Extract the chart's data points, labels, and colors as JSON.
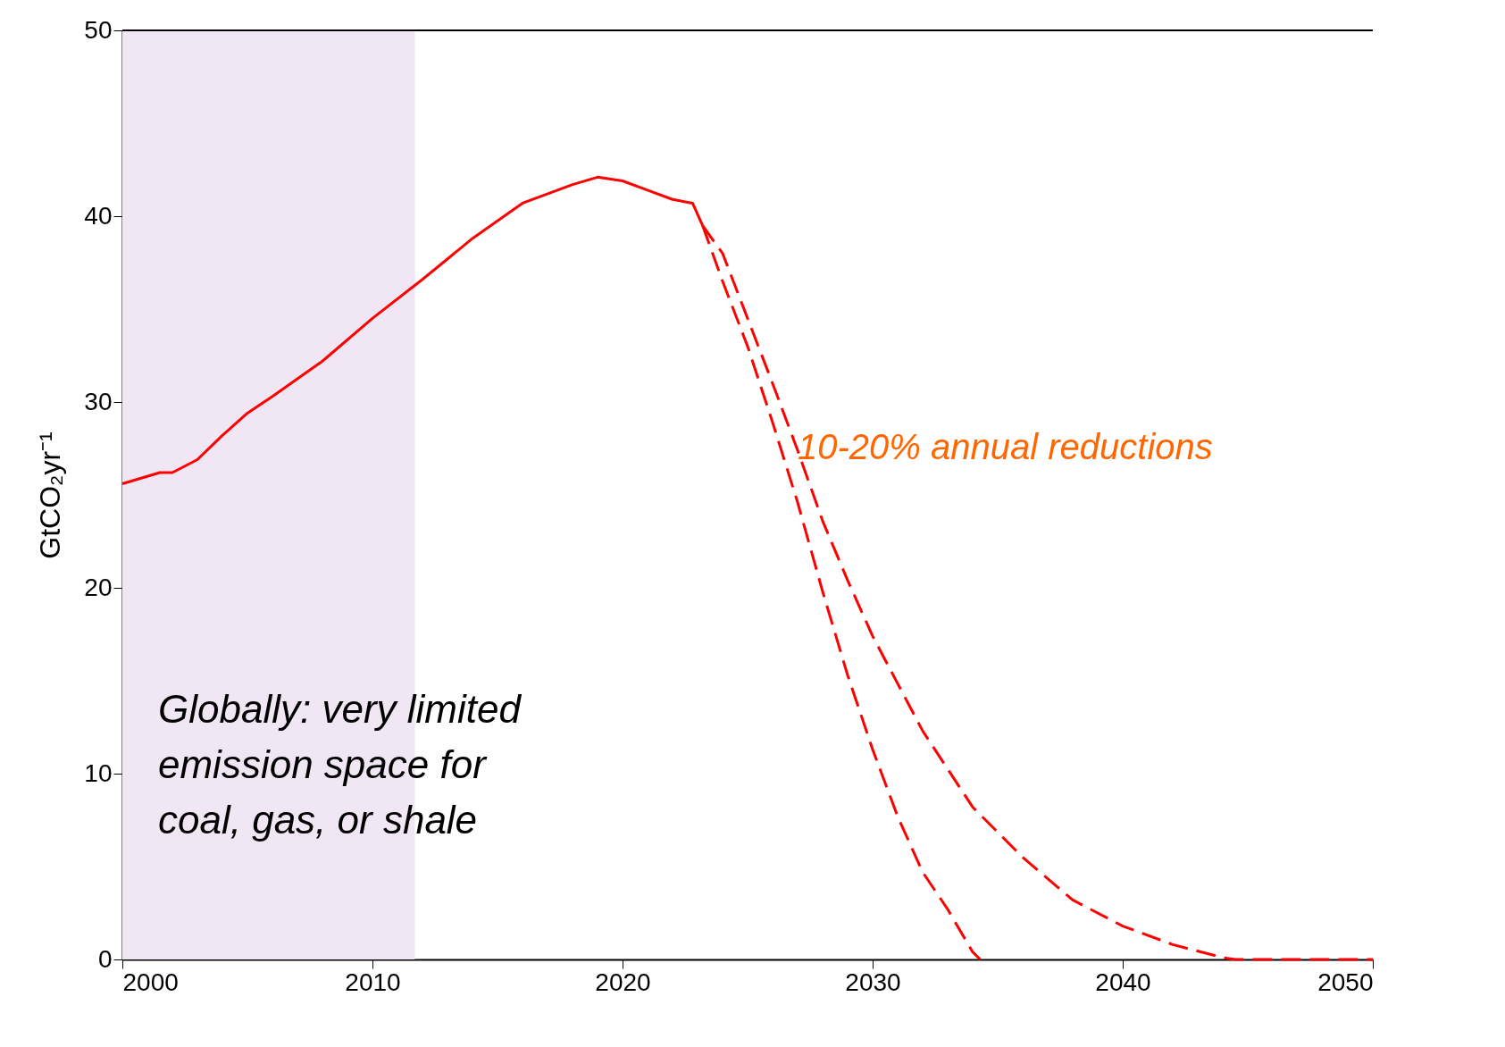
{
  "chart_data": {
    "type": "line",
    "ylabel": "GtCO₂yr⁻¹",
    "xlim": [
      2000,
      2050
    ],
    "ylim": [
      0,
      50
    ],
    "xticks": [
      2000,
      2010,
      2020,
      2030,
      2040,
      2050
    ],
    "yticks": [
      0,
      10,
      20,
      30,
      40,
      50
    ],
    "grid": false,
    "legend": false,
    "marker": "none",
    "bands": [
      {
        "axis": "x",
        "from": 2000,
        "to": 2011.7,
        "color": "#f0e6f4"
      }
    ],
    "series": [
      {
        "color": "#ff0000",
        "line_style": "solid",
        "x": [
          2000,
          2001.5,
          2002,
          2003,
          2004,
          2005,
          2006,
          2008,
          2010,
          2012,
          2014,
          2016,
          2018,
          2019,
          2020,
          2021,
          2022,
          2022.8,
          2023.2
        ],
        "values": [
          25.6,
          26.2,
          26.2,
          26.9,
          28.2,
          29.4,
          30.3,
          32.2,
          34.5,
          36.6,
          38.8,
          40.7,
          41.7,
          42.1,
          41.9,
          41.4,
          40.9,
          40.7,
          39.5
        ]
      },
      {
        "color": "#ff0000",
        "line_style": "dashed",
        "x": [
          2023.2,
          2024,
          2025,
          2026,
          2027,
          2028,
          2029,
          2030,
          2031,
          2032,
          2033,
          2034,
          2034.3
        ],
        "values": [
          39.5,
          36.5,
          33,
          28.9,
          24.6,
          19.8,
          15.3,
          11.3,
          7.7,
          4.7,
          2.7,
          0.4,
          0
        ]
      },
      {
        "color": "#ff0000",
        "line_style": "dashed",
        "x": [
          2023.2,
          2024,
          2025,
          2026,
          2027,
          2028,
          2029,
          2030,
          2032,
          2034,
          2036,
          2038,
          2040,
          2042,
          2044,
          2044.5,
          2050
        ],
        "values": [
          39.5,
          38,
          34.5,
          31,
          27.4,
          23.6,
          20.4,
          17.4,
          12.3,
          8.2,
          5.5,
          3.2,
          1.8,
          0.8,
          0.1,
          0,
          0
        ]
      }
    ],
    "annotations": [
      {
        "text": "10-20% annual reductions",
        "x": 2027,
        "y": 27.5
      },
      "Globally: very limited emission space for coal, gas, or shale"
    ]
  }
}
